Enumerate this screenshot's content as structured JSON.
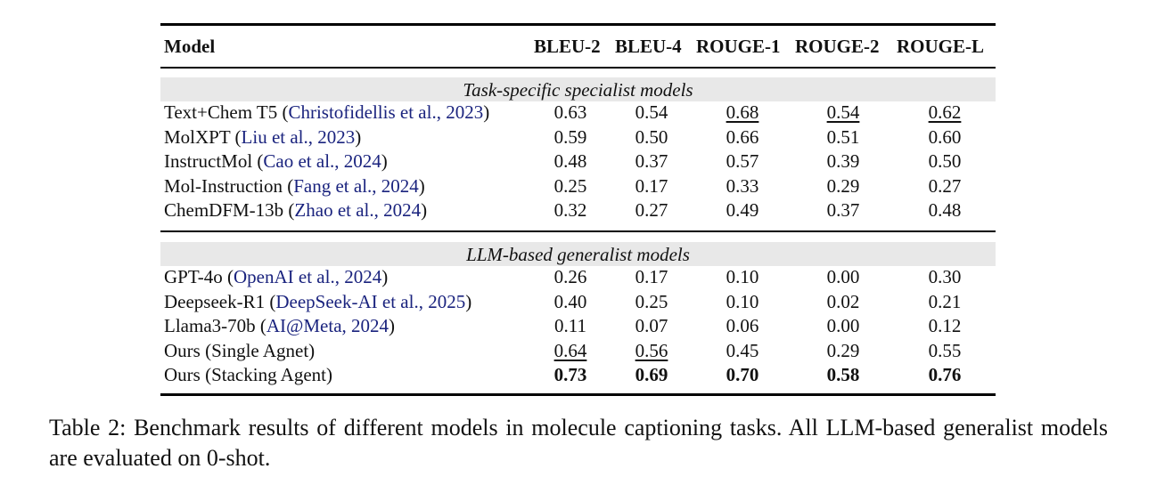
{
  "headers": {
    "model": "Model",
    "metrics": [
      "BLEU-2",
      "BLEU-4",
      "ROUGE-1",
      "ROUGE-2",
      "ROUGE-L"
    ]
  },
  "groups": [
    {
      "title": "Task-specific specialist models",
      "rows": [
        {
          "name": "Text+Chem T5 (",
          "cite": "Christofidellis et al., 2023",
          "close": ")",
          "values": [
            "0.63",
            "0.54",
            "0.68",
            "0.54",
            "0.62"
          ],
          "underline": [
            false,
            false,
            true,
            true,
            true
          ],
          "bold": [
            false,
            false,
            false,
            false,
            false
          ]
        },
        {
          "name": "MolXPT (",
          "cite": "Liu et al., 2023",
          "close": ")",
          "values": [
            "0.59",
            "0.50",
            "0.66",
            "0.51",
            "0.60"
          ],
          "underline": [
            false,
            false,
            false,
            false,
            false
          ],
          "bold": [
            false,
            false,
            false,
            false,
            false
          ]
        },
        {
          "name": "InstructMol (",
          "cite": "Cao et al., 2024",
          "close": ")",
          "values": [
            "0.48",
            "0.37",
            "0.57",
            "0.39",
            "0.50"
          ],
          "underline": [
            false,
            false,
            false,
            false,
            false
          ],
          "bold": [
            false,
            false,
            false,
            false,
            false
          ]
        },
        {
          "name": "Mol-Instruction (",
          "cite": "Fang et al., 2024",
          "close": ")",
          "values": [
            "0.25",
            "0.17",
            "0.33",
            "0.29",
            "0.27"
          ],
          "underline": [
            false,
            false,
            false,
            false,
            false
          ],
          "bold": [
            false,
            false,
            false,
            false,
            false
          ]
        },
        {
          "name": "ChemDFM-13b (",
          "cite": "Zhao et al., 2024",
          "close": ")",
          "values": [
            "0.32",
            "0.27",
            "0.49",
            "0.37",
            "0.48"
          ],
          "underline": [
            false,
            false,
            false,
            false,
            false
          ],
          "bold": [
            false,
            false,
            false,
            false,
            false
          ]
        }
      ]
    },
    {
      "title": "LLM-based generalist models",
      "rows": [
        {
          "name": "GPT-4o (",
          "cite": "OpenAI et al., 2024",
          "close": ")",
          "values": [
            "0.26",
            "0.17",
            "0.10",
            "0.00",
            "0.30"
          ],
          "underline": [
            false,
            false,
            false,
            false,
            false
          ],
          "bold": [
            false,
            false,
            false,
            false,
            false
          ]
        },
        {
          "name": "Deepseek-R1 (",
          "cite": "DeepSeek-AI et al., 2025",
          "close": ")",
          "values": [
            "0.40",
            "0.25",
            "0.10",
            "0.02",
            "0.21"
          ],
          "underline": [
            false,
            false,
            false,
            false,
            false
          ],
          "bold": [
            false,
            false,
            false,
            false,
            false
          ]
        },
        {
          "name": "Llama3-70b (",
          "cite": "AI@Meta, 2024",
          "close": ")",
          "values": [
            "0.11",
            "0.07",
            "0.06",
            "0.00",
            "0.12"
          ],
          "underline": [
            false,
            false,
            false,
            false,
            false
          ],
          "bold": [
            false,
            false,
            false,
            false,
            false
          ]
        },
        {
          "name": "Ours (Single Agnet)",
          "cite": "",
          "close": "",
          "values": [
            "0.64",
            "0.56",
            "0.45",
            "0.29",
            "0.55"
          ],
          "underline": [
            true,
            true,
            false,
            false,
            false
          ],
          "bold": [
            false,
            false,
            false,
            false,
            false
          ]
        },
        {
          "name": "Ours (Stacking Agent)",
          "cite": "",
          "close": "",
          "values": [
            "0.73",
            "0.69",
            "0.70",
            "0.58",
            "0.76"
          ],
          "underline": [
            false,
            false,
            false,
            false,
            false
          ],
          "bold": [
            true,
            true,
            true,
            true,
            true
          ]
        }
      ]
    }
  ],
  "caption": "Table 2:  Benchmark results of different models in molecule captioning tasks.  All LLM-based generalist models are evaluated on 0-shot."
}
